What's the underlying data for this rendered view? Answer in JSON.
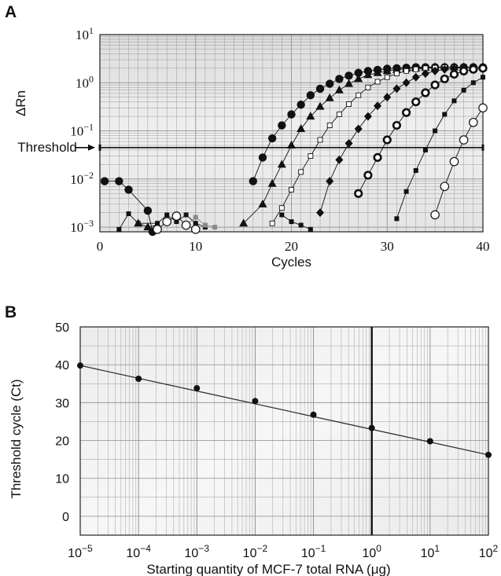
{
  "chart_data": [
    {
      "panel": "A",
      "type": "line",
      "ylabel": "ΔRn",
      "xlabel": "Cycles",
      "y_scale": "log",
      "ylim": [
        0.0008,
        10
      ],
      "xlim": [
        0,
        40
      ],
      "x_ticks": [
        "0",
        "10",
        "20",
        "30",
        "40"
      ],
      "y_tick_labels": [
        {
          "base": "10",
          "exp": "1",
          "value": 10
        },
        {
          "base": "10",
          "exp": "0",
          "value": 1
        },
        {
          "base": "10",
          "exp": "−1",
          "value": 0.1
        },
        {
          "base": "10",
          "exp": "−2",
          "value": 0.01
        },
        {
          "base": "10",
          "exp": "−3",
          "value": 0.001
        }
      ],
      "threshold": {
        "label": "Threshold",
        "value": 0.045
      },
      "grid": true,
      "series": [
        {
          "marker": "filled-circle",
          "color": "#111111",
          "x": [
            0.5,
            2,
            3,
            5,
            5.5,
            16,
            17,
            18,
            19,
            20,
            21,
            22,
            23,
            24,
            25,
            26,
            27,
            28,
            29,
            30,
            31,
            32,
            33,
            34,
            35,
            36,
            37,
            38,
            39,
            40
          ],
          "y": [
            0.009,
            0.009,
            0.006,
            0.0022,
            0.0008,
            0.009,
            0.028,
            0.07,
            0.13,
            0.22,
            0.35,
            0.55,
            0.75,
            0.95,
            1.2,
            1.4,
            1.6,
            1.75,
            1.85,
            1.95,
            2.0,
            2.05,
            2.1,
            2.1,
            2.1,
            2.1,
            2.1,
            2.1,
            2.1,
            2.1
          ]
        },
        {
          "marker": "filled-triangle",
          "color": "#111111",
          "x": [
            4,
            5,
            6,
            15,
            17,
            18,
            19,
            20,
            21,
            22,
            23,
            24,
            25,
            26,
            27,
            28,
            29,
            30,
            31,
            32,
            33,
            34,
            35,
            36,
            37,
            38,
            39,
            40
          ],
          "y": [
            0.0012,
            0.001,
            0.0011,
            0.0012,
            0.003,
            0.008,
            0.02,
            0.05,
            0.11,
            0.2,
            0.32,
            0.48,
            0.7,
            0.95,
            1.2,
            1.45,
            1.6,
            1.75,
            1.85,
            1.95,
            2.0,
            2.05,
            2.1,
            2.1,
            2.1,
            2.1,
            2.1,
            2.1
          ]
        },
        {
          "marker": "open-square",
          "color": "#111111",
          "x": [
            18,
            19,
            20,
            21,
            22,
            23,
            24,
            25,
            26,
            27,
            28,
            29,
            30,
            31,
            32,
            33,
            34,
            35,
            36,
            37,
            38,
            39,
            40
          ],
          "y": [
            0.0012,
            0.0025,
            0.006,
            0.014,
            0.03,
            0.065,
            0.13,
            0.22,
            0.36,
            0.55,
            0.8,
            1.05,
            1.3,
            1.55,
            1.75,
            1.9,
            2.0,
            2.05,
            2.1,
            2.1,
            2.1,
            2.1,
            2.1
          ]
        },
        {
          "marker": "filled-diamond",
          "color": "#111111",
          "x": [
            23,
            24,
            25,
            26,
            27,
            28,
            29,
            30,
            31,
            32,
            33,
            34,
            35,
            36,
            37,
            38,
            39,
            40
          ],
          "y": [
            0.002,
            0.009,
            0.025,
            0.055,
            0.11,
            0.2,
            0.33,
            0.5,
            0.75,
            1.0,
            1.3,
            1.55,
            1.75,
            1.9,
            2.0,
            2.05,
            2.1,
            2.1
          ]
        },
        {
          "marker": "bullseye",
          "color": "#111111",
          "x": [
            27,
            28,
            29,
            30,
            31,
            32,
            33,
            34,
            35,
            36,
            37,
            38,
            39,
            40
          ],
          "y": [
            0.005,
            0.012,
            0.028,
            0.065,
            0.13,
            0.24,
            0.4,
            0.62,
            0.9,
            1.2,
            1.5,
            1.75,
            1.9,
            2.0
          ]
        },
        {
          "marker": "small-filled-square",
          "color": "#111111",
          "x": [
            2,
            3,
            4,
            6,
            7,
            8,
            9,
            10,
            11,
            19,
            20,
            21,
            22,
            31,
            32,
            33,
            34,
            35,
            36,
            37,
            38,
            39,
            40
          ],
          "y": [
            0.0009,
            0.0019,
            0.0012,
            0.0012,
            0.0018,
            0.0013,
            0.0018,
            0.0012,
            0.001,
            0.0018,
            0.0013,
            0.0011,
            0.0009,
            0.0015,
            0.0055,
            0.015,
            0.04,
            0.1,
            0.22,
            0.42,
            0.7,
            1.0,
            1.3
          ]
        },
        {
          "marker": "small-gray-square",
          "color": "#888888",
          "x": [
            9,
            10,
            11,
            12
          ],
          "y": [
            0.0011,
            0.0016,
            0.0011,
            0.001
          ]
        },
        {
          "marker": "open-circle",
          "color": "#111111",
          "x": [
            6,
            7,
            8,
            9,
            10,
            35,
            36,
            37,
            38,
            39,
            40
          ],
          "y": [
            0.0009,
            0.0013,
            0.0017,
            0.0011,
            0.0009,
            0.0018,
            0.007,
            0.023,
            0.065,
            0.15,
            0.3
          ]
        }
      ]
    },
    {
      "panel": "B",
      "type": "scatter",
      "ylabel": "Threshold cycle (Ct)",
      "xlabel": "Starting quantity of MCF-7 total RNA (μg)",
      "x_scale": "log",
      "xlim": [
        1e-05,
        100
      ],
      "ylim": [
        -5,
        50
      ],
      "y_ticks": [
        0,
        10,
        20,
        30,
        40,
        50
      ],
      "x_tick_labels": [
        {
          "base": "10",
          "exp": "−5",
          "value": 1e-05
        },
        {
          "base": "10",
          "exp": "−4",
          "value": 0.0001
        },
        {
          "base": "10",
          "exp": "−3",
          "value": 0.001
        },
        {
          "base": "10",
          "exp": "−2",
          "value": 0.01
        },
        {
          "base": "10",
          "exp": "−1",
          "value": 0.1
        },
        {
          "base": "10",
          "exp": "0",
          "value": 1
        },
        {
          "base": "10",
          "exp": "1",
          "value": 10
        },
        {
          "base": "10",
          "exp": "2",
          "value": 100
        }
      ],
      "grid": true,
      "points": {
        "x": [
          1e-05,
          0.0001,
          0.001,
          0.01,
          0.1,
          1,
          10,
          100
        ],
        "y": [
          39.8,
          36.3,
          33.8,
          30.4,
          26.8,
          23.3,
          19.8,
          16.2
        ]
      },
      "fit_line": {
        "x": [
          1e-05,
          100
        ],
        "y": [
          39.8,
          16.2
        ]
      },
      "vertical_line_at": 1
    }
  ],
  "labels": {
    "panel_a": "A",
    "panel_b": "B"
  }
}
